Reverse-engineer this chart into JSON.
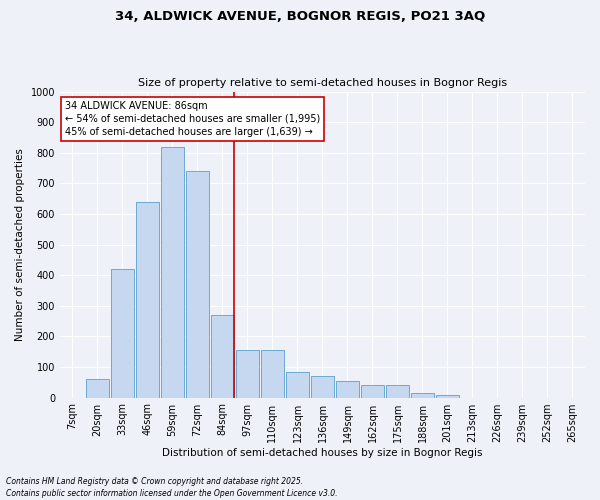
{
  "title1": "34, ALDWICK AVENUE, BOGNOR REGIS, PO21 3AQ",
  "title2": "Size of property relative to semi-detached houses in Bognor Regis",
  "xlabel": "Distribution of semi-detached houses by size in Bognor Regis",
  "ylabel": "Number of semi-detached properties",
  "categories": [
    "7sqm",
    "20sqm",
    "33sqm",
    "46sqm",
    "59sqm",
    "72sqm",
    "84sqm",
    "97sqm",
    "110sqm",
    "123sqm",
    "136sqm",
    "149sqm",
    "162sqm",
    "175sqm",
    "188sqm",
    "201sqm",
    "213sqm",
    "226sqm",
    "239sqm",
    "252sqm",
    "265sqm"
  ],
  "values": [
    0,
    60,
    420,
    640,
    820,
    740,
    270,
    155,
    155,
    85,
    70,
    55,
    40,
    40,
    15,
    10,
    0,
    0,
    0,
    0,
    0
  ],
  "bar_color": "#c5d8f0",
  "bar_edge_color": "#6aaad4",
  "vline_pos": 6.45,
  "annotation_title": "34 ALDWICK AVENUE: 86sqm",
  "annotation_line1": "← 54% of semi-detached houses are smaller (1,995)",
  "annotation_line2": "45% of semi-detached houses are larger (1,639) →",
  "annotation_box_color": "#ffffff",
  "annotation_box_edge": "#cc0000",
  "vline_color": "#cc0000",
  "ylim": [
    0,
    1000
  ],
  "yticks": [
    0,
    100,
    200,
    300,
    400,
    500,
    600,
    700,
    800,
    900,
    1000
  ],
  "footnote1": "Contains HM Land Registry data © Crown copyright and database right 2025.",
  "footnote2": "Contains public sector information licensed under the Open Government Licence v3.0.",
  "bg_color": "#eef2f8",
  "grid_color": "#ffffff",
  "title1_fontsize": 9.5,
  "title2_fontsize": 8,
  "label_fontsize": 7.5,
  "tick_fontsize": 7,
  "annot_fontsize": 7,
  "footnote_fontsize": 5.5
}
